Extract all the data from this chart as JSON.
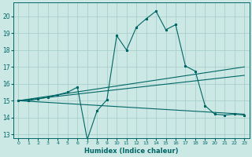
{
  "xlabel": "Humidex (Indice chaleur)",
  "xlim": [
    -0.5,
    23.5
  ],
  "ylim": [
    12.8,
    20.8
  ],
  "yticks": [
    13,
    14,
    15,
    16,
    17,
    18,
    19,
    20
  ],
  "xticks": [
    0,
    1,
    2,
    3,
    4,
    5,
    6,
    7,
    8,
    9,
    10,
    11,
    12,
    13,
    14,
    15,
    16,
    17,
    18,
    19,
    20,
    21,
    22,
    23
  ],
  "bg_color": "#cce8e4",
  "grid_color": "#aad0cc",
  "line_color": "#006666",
  "line1_x": [
    0,
    1,
    2,
    3,
    4,
    5,
    6,
    7,
    8,
    9,
    10,
    11,
    12,
    13,
    14,
    15,
    16,
    17,
    18,
    19,
    20,
    21,
    22,
    23
  ],
  "line1_y": [
    15.0,
    15.0,
    15.1,
    15.2,
    15.35,
    15.5,
    15.8,
    12.7,
    14.4,
    15.05,
    18.85,
    18.0,
    19.35,
    19.85,
    20.3,
    19.2,
    19.5,
    17.05,
    16.75,
    14.7,
    14.2,
    14.15,
    14.2,
    14.15
  ],
  "line2_x": [
    0,
    23
  ],
  "line2_y": [
    15.0,
    17.0
  ],
  "line3_x": [
    0,
    23
  ],
  "line3_y": [
    15.0,
    16.5
  ],
  "line4_x": [
    0,
    23
  ],
  "line4_y": [
    15.0,
    14.2
  ]
}
